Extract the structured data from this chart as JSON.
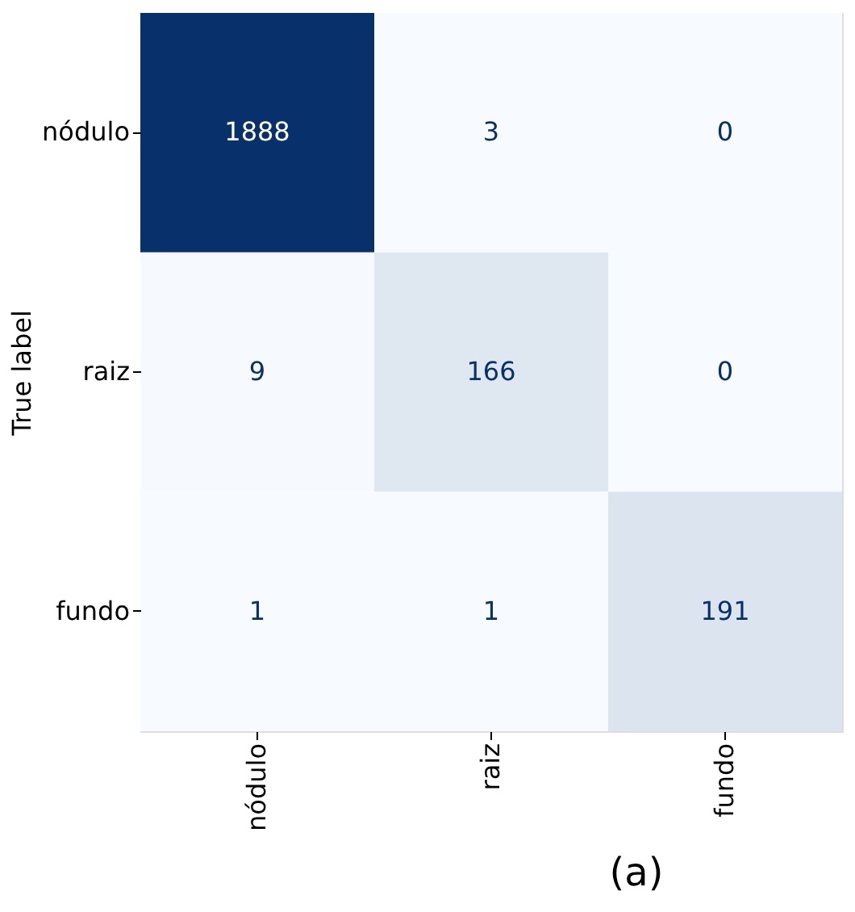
{
  "chart_data": {
    "type": "heatmap",
    "ylabel": "True label",
    "annotations": [
      "(a)"
    ],
    "categories": [
      "nódulo",
      "raiz",
      "fundo"
    ],
    "y_categories": [
      "nódulo",
      "raiz",
      "fundo"
    ],
    "cells": [
      [
        1888,
        3,
        0
      ],
      [
        9,
        166,
        0
      ],
      [
        1,
        1,
        191
      ]
    ],
    "data_labels": true,
    "grid": false,
    "legend": false
  }
}
